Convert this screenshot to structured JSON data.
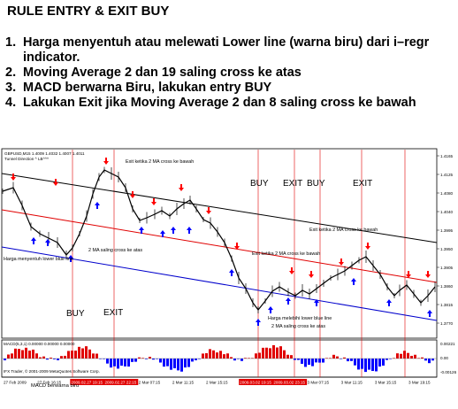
{
  "header": {
    "title": "RULE ENTRY & EXIT BUY"
  },
  "rules": [
    {
      "num": "1.",
      "line1": "Harga menyentuh atau melewati Lower line (warna biru) dari i–regr",
      "line2": "indicator."
    },
    {
      "num": "2.",
      "line1": "Moving Average 2 dan 19 saling cross ke atas",
      "line2": ""
    },
    {
      "num": "3.",
      "line1": "MACD berwarna Biru, lakukan entry BUY",
      "line2": ""
    },
    {
      "num": "4.",
      "line1": "Lakukan Exit jika Moving Average 2 dan 8 saling cross ke bawah",
      "line2": ""
    }
  ],
  "chart": {
    "symbol_line": "GBPUSD,M15  1.4009 1.4032 1.4007 1.4011",
    "indicator_line": "Tunnel Direction ^ LB^^^",
    "macd_label": "MACD(5,3,1) 0.00000 0.00000 0.00000",
    "footer": "IFX Trader, © 2001-2009 MetaQuotes Software Corp.",
    "price_ticks": [
      "1.4165",
      "1.4125",
      "1.4080",
      "1.4040",
      "1.3995",
      "1.3950",
      "1.3905",
      "1.3860",
      "1.3815",
      "1.3770"
    ],
    "macd_ticks": [
      "0.00221",
      "0.00",
      "-0.00126"
    ],
    "time_ticks": [
      "27 Feb 2009",
      "27 Feb 16:15",
      "2009.02.27 19:15",
      "2009.02.27 22:15",
      "2 Mar 07:15",
      "2 Mar 11:15",
      "2 Mar 15:15",
      "2009.03.02 19:15",
      "2009.03.02 23:15",
      "3 Mar 07:15",
      "3 Mar 11:15",
      "3 Mar 15:15",
      "3 Mar 19:15"
    ],
    "annotations": {
      "exit_top": "Exit ketika 2 MA cross ke bawah",
      "exit_right": "Exit ketika 2 MA cross ke bawah",
      "exit_mid": "Exit ketika 2 MA cross ke bawah",
      "ma_cross": "2 MA saling cross ke atas",
      "lower_touch": "Harga menyentuh lower blue line",
      "lower_break": "Harga melebihi lower blue line",
      "ma_cross_2": "2 MA saling cross ke atas",
      "macd_blue": "MACD berwarna biru",
      "buy_1": "BUY",
      "exit_1": "EXIT",
      "buy_2": "BUY",
      "exit_2": "EXIT",
      "buy_3": "BUY",
      "exit_3": "EXIT"
    },
    "colors": {
      "background": "#ffffff",
      "price_line": "#000000",
      "upper_line": "#000000",
      "mid_line": "#e00000",
      "lower_line": "#0000cc",
      "macd_pos": "#e00000",
      "macd_neg": "#0000ff",
      "arrow_up": "#0000ff",
      "arrow_down": "#ff0000",
      "vertical_marker": "#e00000",
      "tick_highlight": "#e00000"
    }
  }
}
